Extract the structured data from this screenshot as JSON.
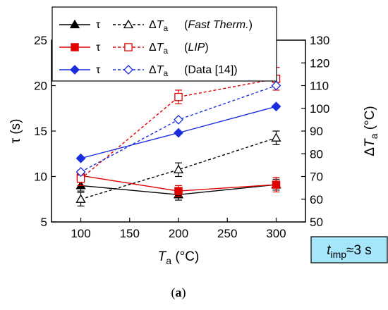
{
  "chart_data": {
    "type": "line",
    "x": [
      100,
      200,
      300
    ],
    "xlabel": {
      "main": "T",
      "sub": "a",
      "unit": " (°C)"
    },
    "ylabel": "τ (s)",
    "y2label": {
      "prefix": "Δ",
      "main": "T",
      "sub": "a",
      "unit": " (°C)"
    },
    "xlim": [
      70,
      330
    ],
    "ylim": [
      5,
      25
    ],
    "y2lim": [
      50,
      130
    ],
    "xticks": [
      "100",
      "150",
      "200",
      "250",
      "300"
    ],
    "yticks": [
      "5",
      "10",
      "15",
      "20",
      "25"
    ],
    "y2ticks": [
      "50",
      "60",
      "70",
      "80",
      "90",
      "100",
      "110",
      "120",
      "130"
    ],
    "grid": false,
    "legend_position": "top-left",
    "panel_label": {
      "open": "(",
      "letter": "a",
      "close": ")"
    },
    "annotation": {
      "main": "t",
      "sub": "imp",
      "rest": "≈3 s",
      "bg_color": "#a6e6fb"
    },
    "series": [
      {
        "name": "τ",
        "legend_tag": "Fast Therm.",
        "axis": "left",
        "color": "#000000",
        "dashed": false,
        "marker": "triangle",
        "filled": true,
        "values": [
          9.0,
          8.0,
          9.1
        ],
        "errors": [
          0.6,
          0.6,
          0.6
        ]
      },
      {
        "name": "ΔTa",
        "legend_tag": "Fast Therm.",
        "axis": "right",
        "color": "#000000",
        "dashed": true,
        "marker": "triangle",
        "filled": false,
        "values": [
          60,
          73,
          87
        ],
        "errors": [
          3,
          3,
          3
        ]
      },
      {
        "name": "τ",
        "legend_tag": "LIP",
        "axis": "left",
        "color": "#e00000",
        "dashed": false,
        "marker": "square",
        "filled": true,
        "values": [
          10.1,
          8.4,
          9.1
        ],
        "errors": [
          0.6,
          0.6,
          0.8
        ]
      },
      {
        "name": "ΔTa",
        "legend_tag": "LIP",
        "axis": "right",
        "color": "#e00000",
        "dashed": true,
        "marker": "square",
        "filled": false,
        "values": [
          69,
          105,
          113
        ],
        "errors": [
          3,
          3,
          5
        ]
      },
      {
        "name": "τ",
        "legend_tag": "Data [14]",
        "axis": "left",
        "color": "#1a2ee0",
        "dashed": false,
        "marker": "diamond",
        "filled": true,
        "values": [
          12.0,
          14.8,
          17.7
        ],
        "errors": [
          0,
          0,
          0
        ]
      },
      {
        "name": "ΔTa",
        "legend_tag": "Data [14]",
        "axis": "right",
        "color": "#1a2ee0",
        "dashed": true,
        "marker": "diamond",
        "filled": false,
        "values": [
          72,
          95,
          110
        ],
        "errors": [
          0,
          0,
          0
        ]
      }
    ]
  }
}
